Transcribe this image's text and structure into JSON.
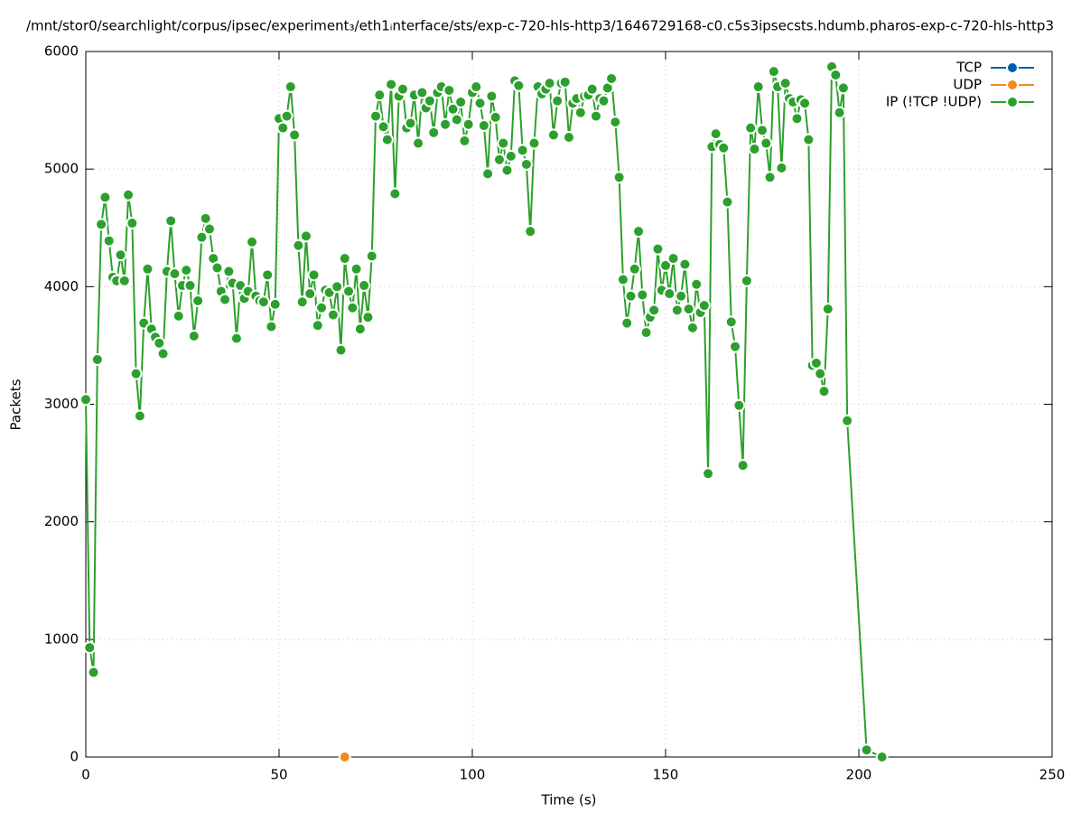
{
  "chart_data": {
    "type": "line",
    "title": "/mnt/stor0/searchlight/corpus/ipsec/experiment₃/eth1ᵢnterface/sts/exp-c-720-hls-http3/1646729168-c0.c5s3ipsecsts.hdumb.pharos-exp-c-720-hls-http3",
    "xlabel": "Time (s)",
    "ylabel": "Packets",
    "xlim": [
      0,
      250
    ],
    "ylim": [
      0,
      6000
    ],
    "xticks": [
      0,
      50,
      100,
      150,
      200,
      250
    ],
    "yticks": [
      0,
      1000,
      2000,
      3000,
      4000,
      5000,
      6000
    ],
    "grid": true,
    "legend": "top-right",
    "series": [
      {
        "name": "TCP",
        "color": "#0060ad",
        "x": [],
        "values": []
      },
      {
        "name": "UDP",
        "color": "#f28a1a",
        "x": [
          67
        ],
        "values": [
          0
        ]
      },
      {
        "name": "IP (!TCP  !UDP)",
        "color": "#2ca02c",
        "x": [
          0,
          1,
          2,
          3,
          4,
          5,
          6,
          7,
          8,
          9,
          10,
          11,
          12,
          13,
          14,
          15,
          16,
          17,
          18,
          19,
          20,
          21,
          22,
          23,
          24,
          25,
          26,
          27,
          28,
          29,
          30,
          31,
          32,
          33,
          34,
          35,
          36,
          37,
          38,
          39,
          40,
          41,
          42,
          43,
          44,
          45,
          46,
          47,
          48,
          49,
          50,
          51,
          52,
          53,
          54,
          55,
          56,
          57,
          58,
          59,
          60,
          61,
          62,
          63,
          64,
          65,
          66,
          67,
          68,
          69,
          70,
          71,
          72,
          73,
          74,
          75,
          76,
          77,
          78,
          79,
          80,
          81,
          82,
          83,
          84,
          85,
          86,
          87,
          88,
          89,
          90,
          91,
          92,
          93,
          94,
          95,
          96,
          97,
          98,
          99,
          100,
          101,
          102,
          103,
          104,
          105,
          106,
          107,
          108,
          109,
          110,
          111,
          112,
          113,
          114,
          115,
          116,
          117,
          118,
          119,
          120,
          121,
          122,
          123,
          124,
          125,
          126,
          127,
          128,
          129,
          130,
          131,
          132,
          133,
          134,
          135,
          136,
          137,
          138,
          139,
          140,
          141,
          142,
          143,
          144,
          145,
          146,
          147,
          148,
          149,
          150,
          151,
          152,
          153,
          154,
          155,
          156,
          157,
          158,
          159,
          160,
          161,
          162,
          163,
          164,
          165,
          166,
          167,
          168,
          169,
          170,
          171,
          172,
          173,
          174,
          175,
          176,
          177,
          178,
          179,
          180,
          181,
          182,
          183,
          184,
          185,
          186,
          187,
          188,
          189,
          190,
          191,
          192,
          193,
          194,
          195,
          196,
          197,
          202,
          206
        ],
        "values": [
          3040,
          930,
          720,
          3380,
          4530,
          4760,
          4390,
          4080,
          4050,
          4270,
          4050,
          4780,
          4540,
          3260,
          2900,
          3690,
          4150,
          3640,
          3570,
          3520,
          3430,
          4130,
          4560,
          4110,
          3750,
          4010,
          4140,
          4010,
          3580,
          3880,
          4420,
          4580,
          4490,
          4240,
          4160,
          3960,
          3890,
          4130,
          4030,
          3560,
          4010,
          3900,
          3960,
          4380,
          3920,
          3880,
          3870,
          4100,
          3660,
          3850,
          5430,
          5350,
          5450,
          5700,
          5290,
          4350,
          3870,
          4430,
          3940,
          4100,
          3670,
          3820,
          3970,
          3950,
          3760,
          4000,
          3460,
          4240,
          3960,
          3820,
          4150,
          3640,
          4010,
          3740,
          4260,
          5450,
          5630,
          5360,
          5250,
          5720,
          4790,
          5620,
          5680,
          5350,
          5390,
          5630,
          5220,
          5650,
          5520,
          5580,
          5310,
          5650,
          5700,
          5380,
          5670,
          5510,
          5420,
          5570,
          5240,
          5380,
          5650,
          5700,
          5560,
          5370,
          4960,
          5620,
          5440,
          5080,
          5220,
          4990,
          5110,
          5750,
          5710,
          5160,
          5040,
          4470,
          5220,
          5700,
          5640,
          5680,
          5730,
          5290,
          5580,
          5730,
          5740,
          5270,
          5560,
          5600,
          5480,
          5620,
          5630,
          5680,
          5450,
          5600,
          5580,
          5690,
          5770,
          5400,
          4930,
          4060,
          3690,
          3920,
          4150,
          4470,
          3930,
          3610,
          3740,
          3800,
          4320,
          3970,
          4180,
          3940,
          4240,
          3800,
          3920,
          4190,
          3810,
          3650,
          4020,
          3780,
          3840,
          2410,
          5190,
          5300,
          5210,
          5180,
          4720,
          3700,
          3490,
          2990,
          2480,
          4050,
          5350,
          5170,
          5700,
          5330,
          5220,
          4930,
          5830,
          5700,
          5010,
          5730,
          5600,
          5570,
          5430,
          5590,
          5560,
          5250,
          3330,
          3350,
          3260,
          3110,
          3810,
          5870,
          5800,
          5480,
          5690,
          2860,
          60,
          0
        ]
      }
    ]
  }
}
